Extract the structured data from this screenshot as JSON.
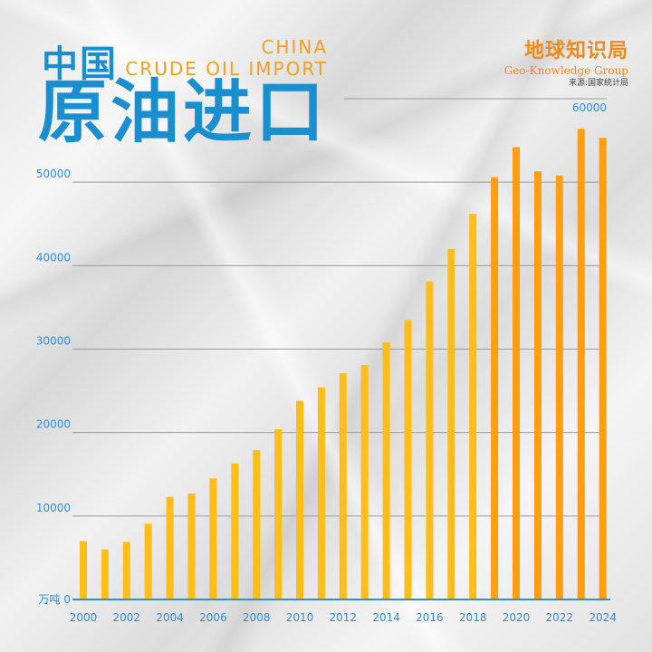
{
  "header": {
    "title_cn_small": "中国",
    "title_cn_big": "原油进口",
    "title_en_line1": "CHINA",
    "title_en_line2": "CRUDE OIL IMPORT",
    "brand_cn": "地球知识局",
    "brand_en": "Geo-Knowledge Group",
    "source": "来源:国家统计局"
  },
  "colors": {
    "title_blue": "#1a8fd0",
    "bar_yellow": "#ffbd1a",
    "bar_orange": "#ff9e12",
    "axis_blue": "#2e8fd6",
    "gridline": "#9a9a9a"
  },
  "chart_data": {
    "type": "bar",
    "ylabel": "",
    "y_unit_label": "万吨",
    "ylim": [
      0,
      60000
    ],
    "yticks": [
      0,
      10000,
      20000,
      30000,
      40000,
      50000,
      60000
    ],
    "grid": true,
    "x": [
      2000,
      2001,
      2002,
      2003,
      2004,
      2005,
      2006,
      2007,
      2008,
      2009,
      2010,
      2011,
      2012,
      2013,
      2014,
      2015,
      2016,
      2017,
      2018,
      2019,
      2020,
      2021,
      2022,
      2023,
      2024
    ],
    "xtick_labels": [
      "2000",
      "2002",
      "2004",
      "2006",
      "2008",
      "2010",
      "2012",
      "2014",
      "2016",
      "2018",
      "2020",
      "2022",
      "2024"
    ],
    "values": [
      7000,
      6000,
      6900,
      9100,
      12300,
      12700,
      14500,
      16300,
      17900,
      20400,
      23800,
      25400,
      27100,
      28100,
      30800,
      33500,
      38100,
      42000,
      46200,
      50600,
      54200,
      51300,
      50800,
      56400,
      55300
    ]
  }
}
